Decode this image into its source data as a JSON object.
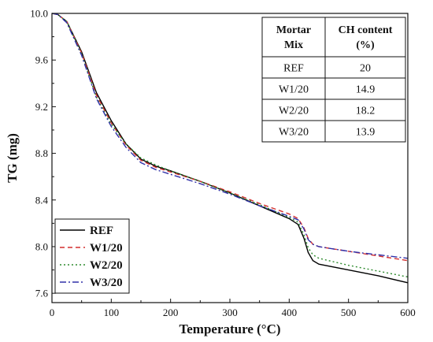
{
  "chart_data": {
    "type": "line",
    "title": "",
    "xlabel": "Temperature (°C)",
    "ylabel": "TG (mg)",
    "xlim": [
      0,
      600
    ],
    "ylim": [
      7.52,
      10.0
    ],
    "x_ticks": [
      "0",
      "100",
      "200",
      "300",
      "400",
      "500",
      "600"
    ],
    "y_ticks": [
      "7.6",
      "8.0",
      "8.4",
      "8.8",
      "9.2",
      "9.6",
      "10.0"
    ],
    "x_tick_values": [
      0,
      100,
      200,
      300,
      400,
      500,
      600
    ],
    "y_tick_values": [
      7.6,
      8.0,
      8.4,
      8.8,
      9.2,
      9.6,
      10.0
    ],
    "grid": false,
    "legend_position": "bottom-left",
    "series": [
      {
        "name": "REF",
        "color": "#000000",
        "dash": "solid",
        "x": [
          0,
          10,
          25,
          50,
          75,
          100,
          125,
          150,
          175,
          200,
          250,
          300,
          350,
          400,
          415,
          425,
          432,
          440,
          450,
          500,
          550,
          600
        ],
        "y": [
          10.0,
          9.99,
          9.93,
          9.67,
          9.32,
          9.08,
          8.88,
          8.75,
          8.69,
          8.65,
          8.56,
          8.46,
          8.35,
          8.24,
          8.19,
          8.07,
          7.95,
          7.88,
          7.85,
          7.8,
          7.75,
          7.69
        ]
      },
      {
        "name": "W1/20",
        "color": "#d32f2f",
        "dash": "dashed",
        "x": [
          0,
          10,
          25,
          50,
          75,
          100,
          125,
          150,
          175,
          200,
          250,
          300,
          350,
          400,
          415,
          425,
          432,
          440,
          450,
          500,
          550,
          600
        ],
        "y": [
          10.0,
          9.99,
          9.93,
          9.66,
          9.3,
          9.06,
          8.87,
          8.74,
          8.68,
          8.64,
          8.56,
          8.47,
          8.37,
          8.28,
          8.24,
          8.16,
          8.07,
          8.02,
          8.0,
          7.96,
          7.92,
          7.88
        ]
      },
      {
        "name": "W2/20",
        "color": "#2e8b2e",
        "dash": "dotted",
        "x": [
          0,
          10,
          25,
          50,
          75,
          100,
          125,
          150,
          175,
          200,
          250,
          300,
          350,
          400,
          415,
          425,
          432,
          440,
          450,
          500,
          550,
          600
        ],
        "y": [
          10.0,
          9.99,
          9.93,
          9.65,
          9.28,
          9.05,
          8.88,
          8.76,
          8.7,
          8.65,
          8.56,
          8.46,
          8.36,
          8.25,
          8.21,
          8.1,
          7.99,
          7.93,
          7.9,
          7.84,
          7.79,
          7.74
        ]
      },
      {
        "name": "W3/20",
        "color": "#3030a8",
        "dash": "dashdot",
        "x": [
          0,
          10,
          25,
          50,
          75,
          100,
          125,
          150,
          175,
          200,
          250,
          300,
          350,
          400,
          415,
          425,
          432,
          440,
          450,
          500,
          550,
          600
        ],
        "y": [
          10.0,
          9.99,
          9.92,
          9.64,
          9.27,
          9.03,
          8.85,
          8.72,
          8.66,
          8.62,
          8.54,
          8.45,
          8.35,
          8.26,
          8.23,
          8.15,
          8.06,
          8.02,
          8.0,
          7.96,
          7.93,
          7.9
        ]
      }
    ],
    "table": {
      "headers": [
        [
          "Mortar",
          "Mix"
        ],
        [
          "CH content",
          "(%)"
        ]
      ],
      "rows": [
        [
          "REF",
          "20"
        ],
        [
          "W1/20",
          "14.9"
        ],
        [
          "W2/20",
          "18.2"
        ],
        [
          "W3/20",
          "13.9"
        ]
      ]
    }
  }
}
